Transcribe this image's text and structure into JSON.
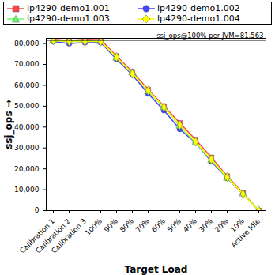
{
  "chart_data": {
    "type": "line",
    "x_label": "Target Load",
    "y_label": "ssj_ops",
    "categories": [
      "Calibration 1",
      "Calibration 2",
      "Calibration 3",
      "100%",
      "90%",
      "80%",
      "70%",
      "60%",
      "50%",
      "40%",
      "30%",
      "20%",
      "10%",
      "Active Idle"
    ],
    "series": [
      {
        "name": "lp4290-demo1.001",
        "color": "#ff4444",
        "marker": "square",
        "values": [
          82000,
          81500,
          82000,
          81800,
          74000,
          66500,
          58000,
          50000,
          42000,
          34000,
          25500,
          16500,
          8500,
          0
        ]
      },
      {
        "name": "lp4290-demo1.002",
        "color": "#4444ff",
        "marker": "circle",
        "values": [
          81000,
          80000,
          80500,
          80500,
          72500,
          65000,
          56000,
          48000,
          39000,
          32500,
          23500,
          15500,
          8000,
          0
        ]
      },
      {
        "name": "lp4290-demo1.003",
        "color": "#66ff66",
        "marker": "triangle",
        "values": [
          81500,
          81000,
          81500,
          81000,
          73000,
          66000,
          57000,
          49500,
          40500,
          32500,
          24000,
          15500,
          8000,
          0
        ]
      },
      {
        "name": "lp4290-demo1.004",
        "color": "#ffff00",
        "marker": "diamond",
        "values": [
          81500,
          81000,
          81000,
          81000,
          73500,
          65500,
          57500,
          49500,
          41000,
          33000,
          24500,
          16000,
          8000,
          0
        ]
      }
    ],
    "annotations": [
      {
        "text": "ssj_ops@100% per JVM=81,563",
        "y": 81563
      }
    ],
    "ylim": [
      0,
      82500
    ],
    "yticks": [
      0,
      {
        "value": 10000,
        "label": "10,000"
      },
      {
        "value": 20000,
        "label": "20,000"
      },
      {
        "value": 30000,
        "label": "30,000"
      },
      {
        "value": 40000,
        "label": "40,000"
      },
      {
        "value": 50000,
        "label": "50,000"
      },
      {
        "value": 60000,
        "label": "60,000"
      },
      {
        "value": 70000,
        "label": "70,000"
      },
      {
        "value": 80000,
        "label": "80,000"
      }
    ],
    "grid": false,
    "legend": "top"
  }
}
